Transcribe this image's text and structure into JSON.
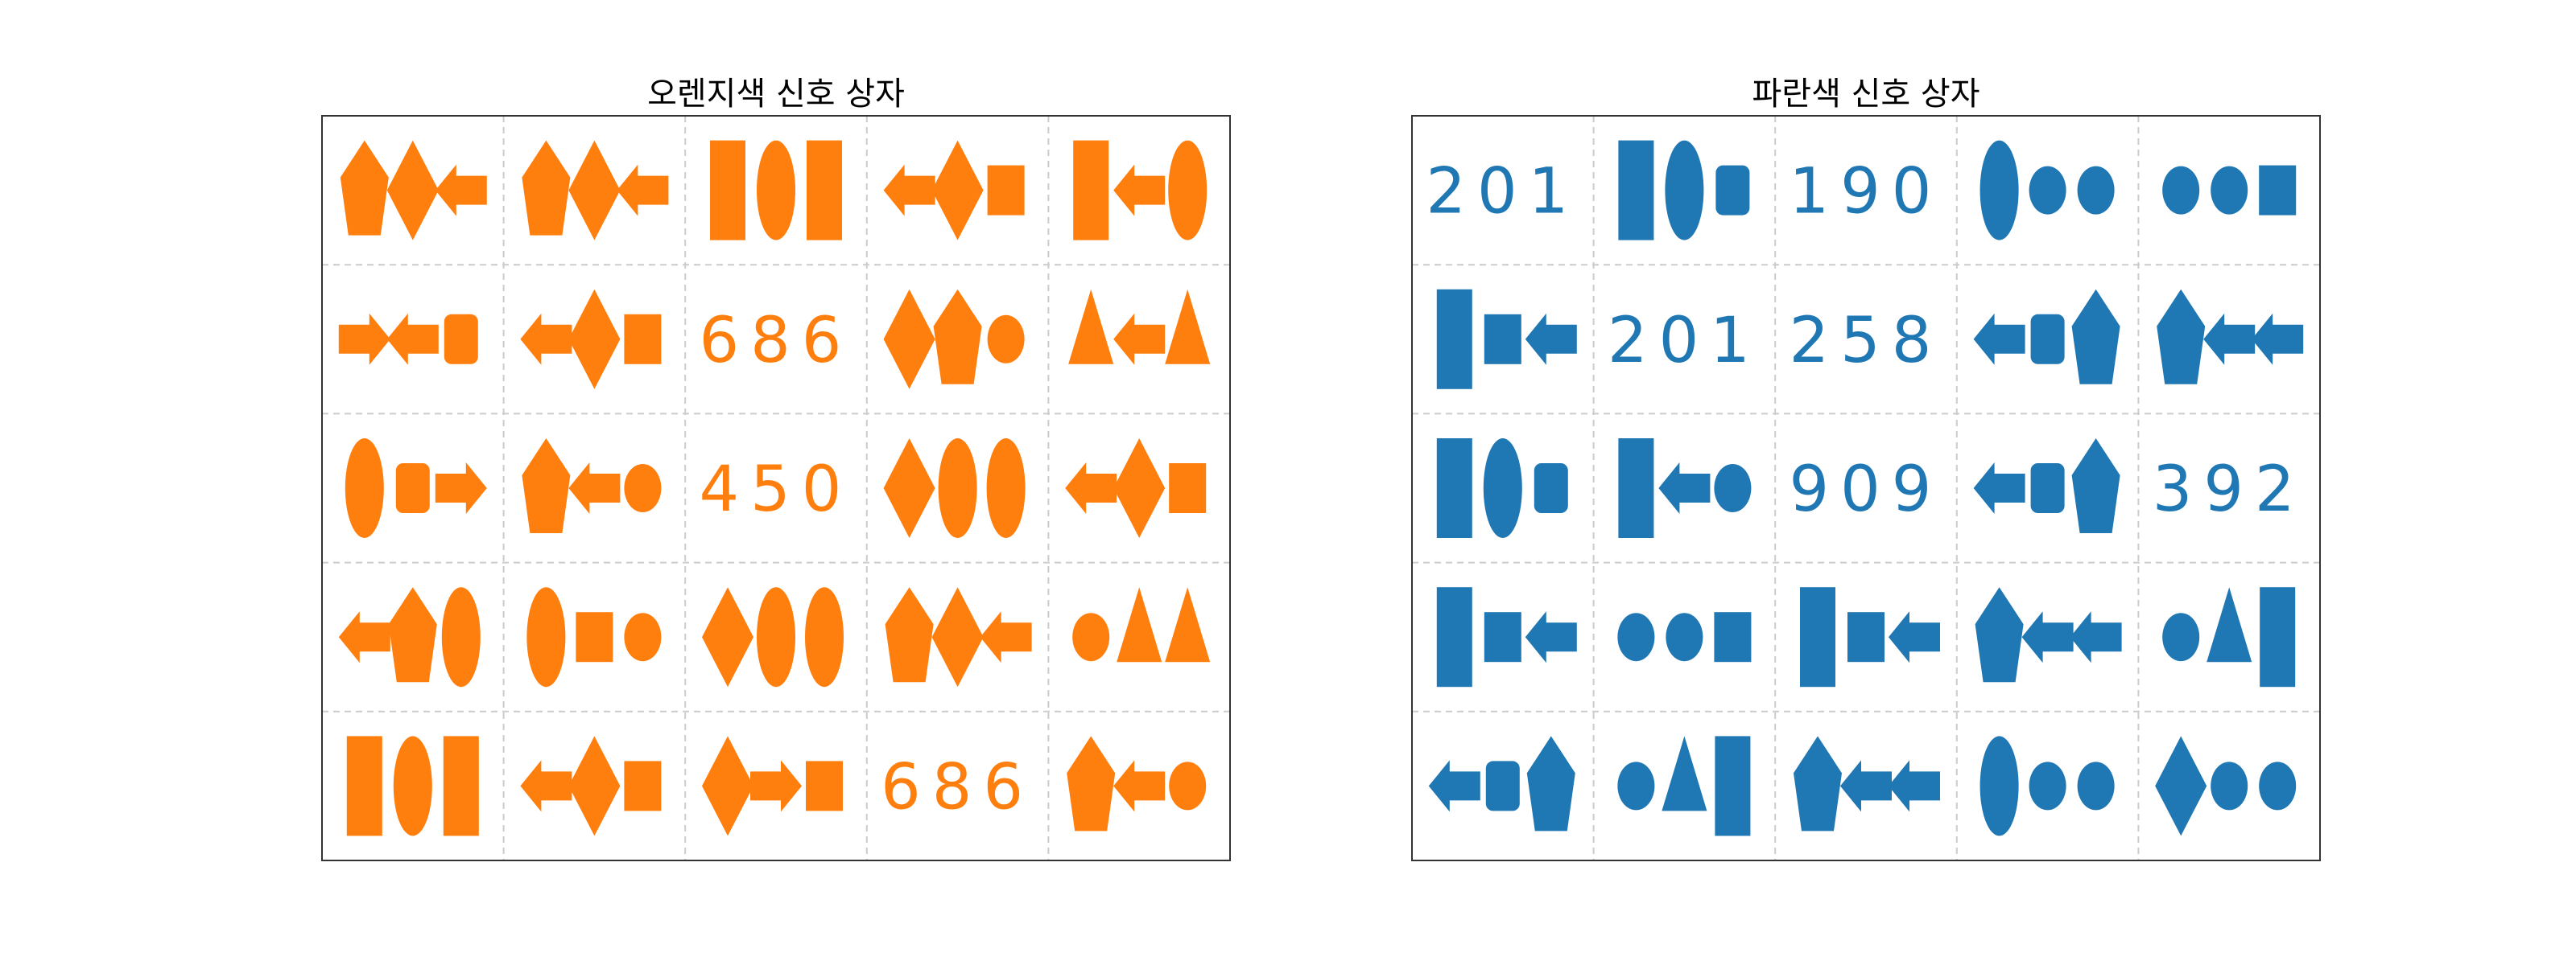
{
  "colors": {
    "orange": "#ff7f0e",
    "blue": "#1f77b4",
    "grid": "#cccccc",
    "frame": "#333333"
  },
  "panels": [
    {
      "title": "오렌지색 신호 상자",
      "color": "#ff7f0e",
      "cells": [
        [
          {
            "shapes": [
              "pentagon",
              "diamond",
              "arrow-left"
            ]
          },
          {
            "shapes": [
              "pentagon",
              "diamond",
              "arrow-left"
            ]
          },
          {
            "shapes": [
              "rect-tall",
              "ellipse-tall",
              "rect-tall"
            ]
          },
          {
            "shapes": [
              "arrow-left",
              "diamond",
              "square"
            ]
          },
          {
            "shapes": [
              "rect-tall",
              "arrow-left",
              "ellipse-tall"
            ]
          }
        ],
        [
          {
            "shapes": [
              "arrow-right",
              "arrow-left",
              "rounded-rect"
            ]
          },
          {
            "shapes": [
              "arrow-left",
              "diamond",
              "square"
            ]
          },
          {
            "text": "686"
          },
          {
            "shapes": [
              "diamond",
              "pentagon",
              "circle"
            ]
          },
          {
            "shapes": [
              "triangle",
              "arrow-left",
              "triangle"
            ]
          }
        ],
        [
          {
            "shapes": [
              "ellipse-tall",
              "rounded-rect",
              "arrow-right"
            ]
          },
          {
            "shapes": [
              "pentagon",
              "arrow-left",
              "circle"
            ]
          },
          {
            "text": "450"
          },
          {
            "shapes": [
              "diamond",
              "ellipse-tall",
              "ellipse-tall"
            ]
          },
          {
            "shapes": [
              "arrow-left",
              "diamond",
              "square"
            ]
          }
        ],
        [
          {
            "shapes": [
              "arrow-left",
              "pentagon",
              "ellipse-tall"
            ]
          },
          {
            "shapes": [
              "ellipse-tall",
              "square",
              "circle"
            ]
          },
          {
            "shapes": [
              "diamond",
              "ellipse-tall",
              "ellipse-tall"
            ]
          },
          {
            "shapes": [
              "pentagon",
              "diamond",
              "arrow-left"
            ]
          },
          {
            "shapes": [
              "circle",
              "triangle",
              "triangle"
            ]
          }
        ],
        [
          {
            "shapes": [
              "rect-tall",
              "ellipse-tall",
              "rect-tall"
            ]
          },
          {
            "shapes": [
              "arrow-left",
              "diamond",
              "square"
            ]
          },
          {
            "shapes": [
              "diamond",
              "arrow-right",
              "square"
            ]
          },
          {
            "text": "686"
          },
          {
            "shapes": [
              "pentagon",
              "arrow-left",
              "circle"
            ]
          }
        ]
      ]
    },
    {
      "title": "파란색 신호 상자",
      "color": "#1f77b4",
      "cells": [
        [
          {
            "text": "201"
          },
          {
            "shapes": [
              "rect-tall",
              "ellipse-tall",
              "rounded-rect"
            ]
          },
          {
            "text": "190"
          },
          {
            "shapes": [
              "ellipse-tall",
              "circle",
              "circle"
            ]
          },
          {
            "shapes": [
              "circle",
              "circle",
              "square"
            ]
          }
        ],
        [
          {
            "shapes": [
              "rect-tall",
              "square",
              "arrow-left"
            ]
          },
          {
            "text": "201"
          },
          {
            "text": "258"
          },
          {
            "shapes": [
              "arrow-left",
              "rounded-rect",
              "pentagon"
            ]
          },
          {
            "shapes": [
              "pentagon",
              "arrow-left",
              "arrow-left"
            ]
          }
        ],
        [
          {
            "shapes": [
              "rect-tall",
              "ellipse-tall",
              "rounded-rect"
            ]
          },
          {
            "shapes": [
              "rect-tall",
              "arrow-left",
              "circle"
            ]
          },
          {
            "text": "909"
          },
          {
            "shapes": [
              "arrow-left",
              "rounded-rect",
              "pentagon"
            ]
          },
          {
            "text": "392"
          }
        ],
        [
          {
            "shapes": [
              "rect-tall",
              "square",
              "arrow-left"
            ]
          },
          {
            "shapes": [
              "circle",
              "circle",
              "square"
            ]
          },
          {
            "shapes": [
              "rect-tall",
              "square",
              "arrow-left"
            ]
          },
          {
            "shapes": [
              "pentagon",
              "arrow-left",
              "arrow-left"
            ]
          },
          {
            "shapes": [
              "circle",
              "triangle",
              "rect-tall"
            ]
          }
        ],
        [
          {
            "shapes": [
              "arrow-left",
              "rounded-rect",
              "pentagon"
            ]
          },
          {
            "shapes": [
              "circle",
              "triangle",
              "rect-tall"
            ]
          },
          {
            "shapes": [
              "pentagon",
              "arrow-left",
              "arrow-left"
            ]
          },
          {
            "shapes": [
              "ellipse-tall",
              "circle",
              "circle"
            ]
          },
          {
            "shapes": [
              "diamond",
              "circle",
              "circle"
            ]
          }
        ]
      ]
    }
  ]
}
